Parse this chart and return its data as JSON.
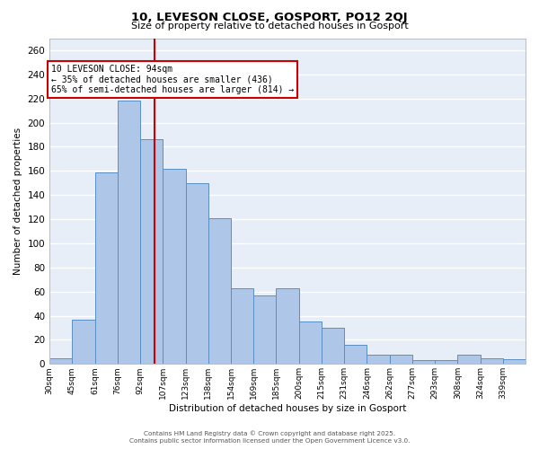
{
  "title": "10, LEVESON CLOSE, GOSPORT, PO12 2QJ",
  "subtitle": "Size of property relative to detached houses in Gosport",
  "xlabel": "Distribution of detached houses by size in Gosport",
  "ylabel": "Number of detached properties",
  "bin_labels": [
    "30sqm",
    "45sqm",
    "61sqm",
    "76sqm",
    "92sqm",
    "107sqm",
    "123sqm",
    "138sqm",
    "154sqm",
    "169sqm",
    "185sqm",
    "200sqm",
    "215sqm",
    "231sqm",
    "246sqm",
    "262sqm",
    "277sqm",
    "293sqm",
    "308sqm",
    "324sqm",
    "339sqm"
  ],
  "bar_heights": [
    5,
    37,
    159,
    218,
    186,
    162,
    150,
    121,
    63,
    57,
    63,
    35,
    30,
    16,
    8,
    8,
    3,
    3,
    8,
    5,
    4
  ],
  "bar_color": "#aec6e8",
  "bar_edge_color": "#5a8fc2",
  "bg_color": "#e8eef8",
  "grid_color": "#ffffff",
  "vline_bin": 4,
  "vline_color": "#cc0000",
  "annotation_title": "10 LEVESON CLOSE: 94sqm",
  "annotation_line1": "← 35% of detached houses are smaller (436)",
  "annotation_line2": "65% of semi-detached houses are larger (814) →",
  "annotation_box_color": "#cc0000",
  "ylim": [
    0,
    270
  ],
  "yticks": [
    0,
    20,
    40,
    60,
    80,
    100,
    120,
    140,
    160,
    180,
    200,
    220,
    240,
    260
  ],
  "footer1": "Contains HM Land Registry data © Crown copyright and database right 2025.",
  "footer2": "Contains public sector information licensed under the Open Government Licence v3.0."
}
